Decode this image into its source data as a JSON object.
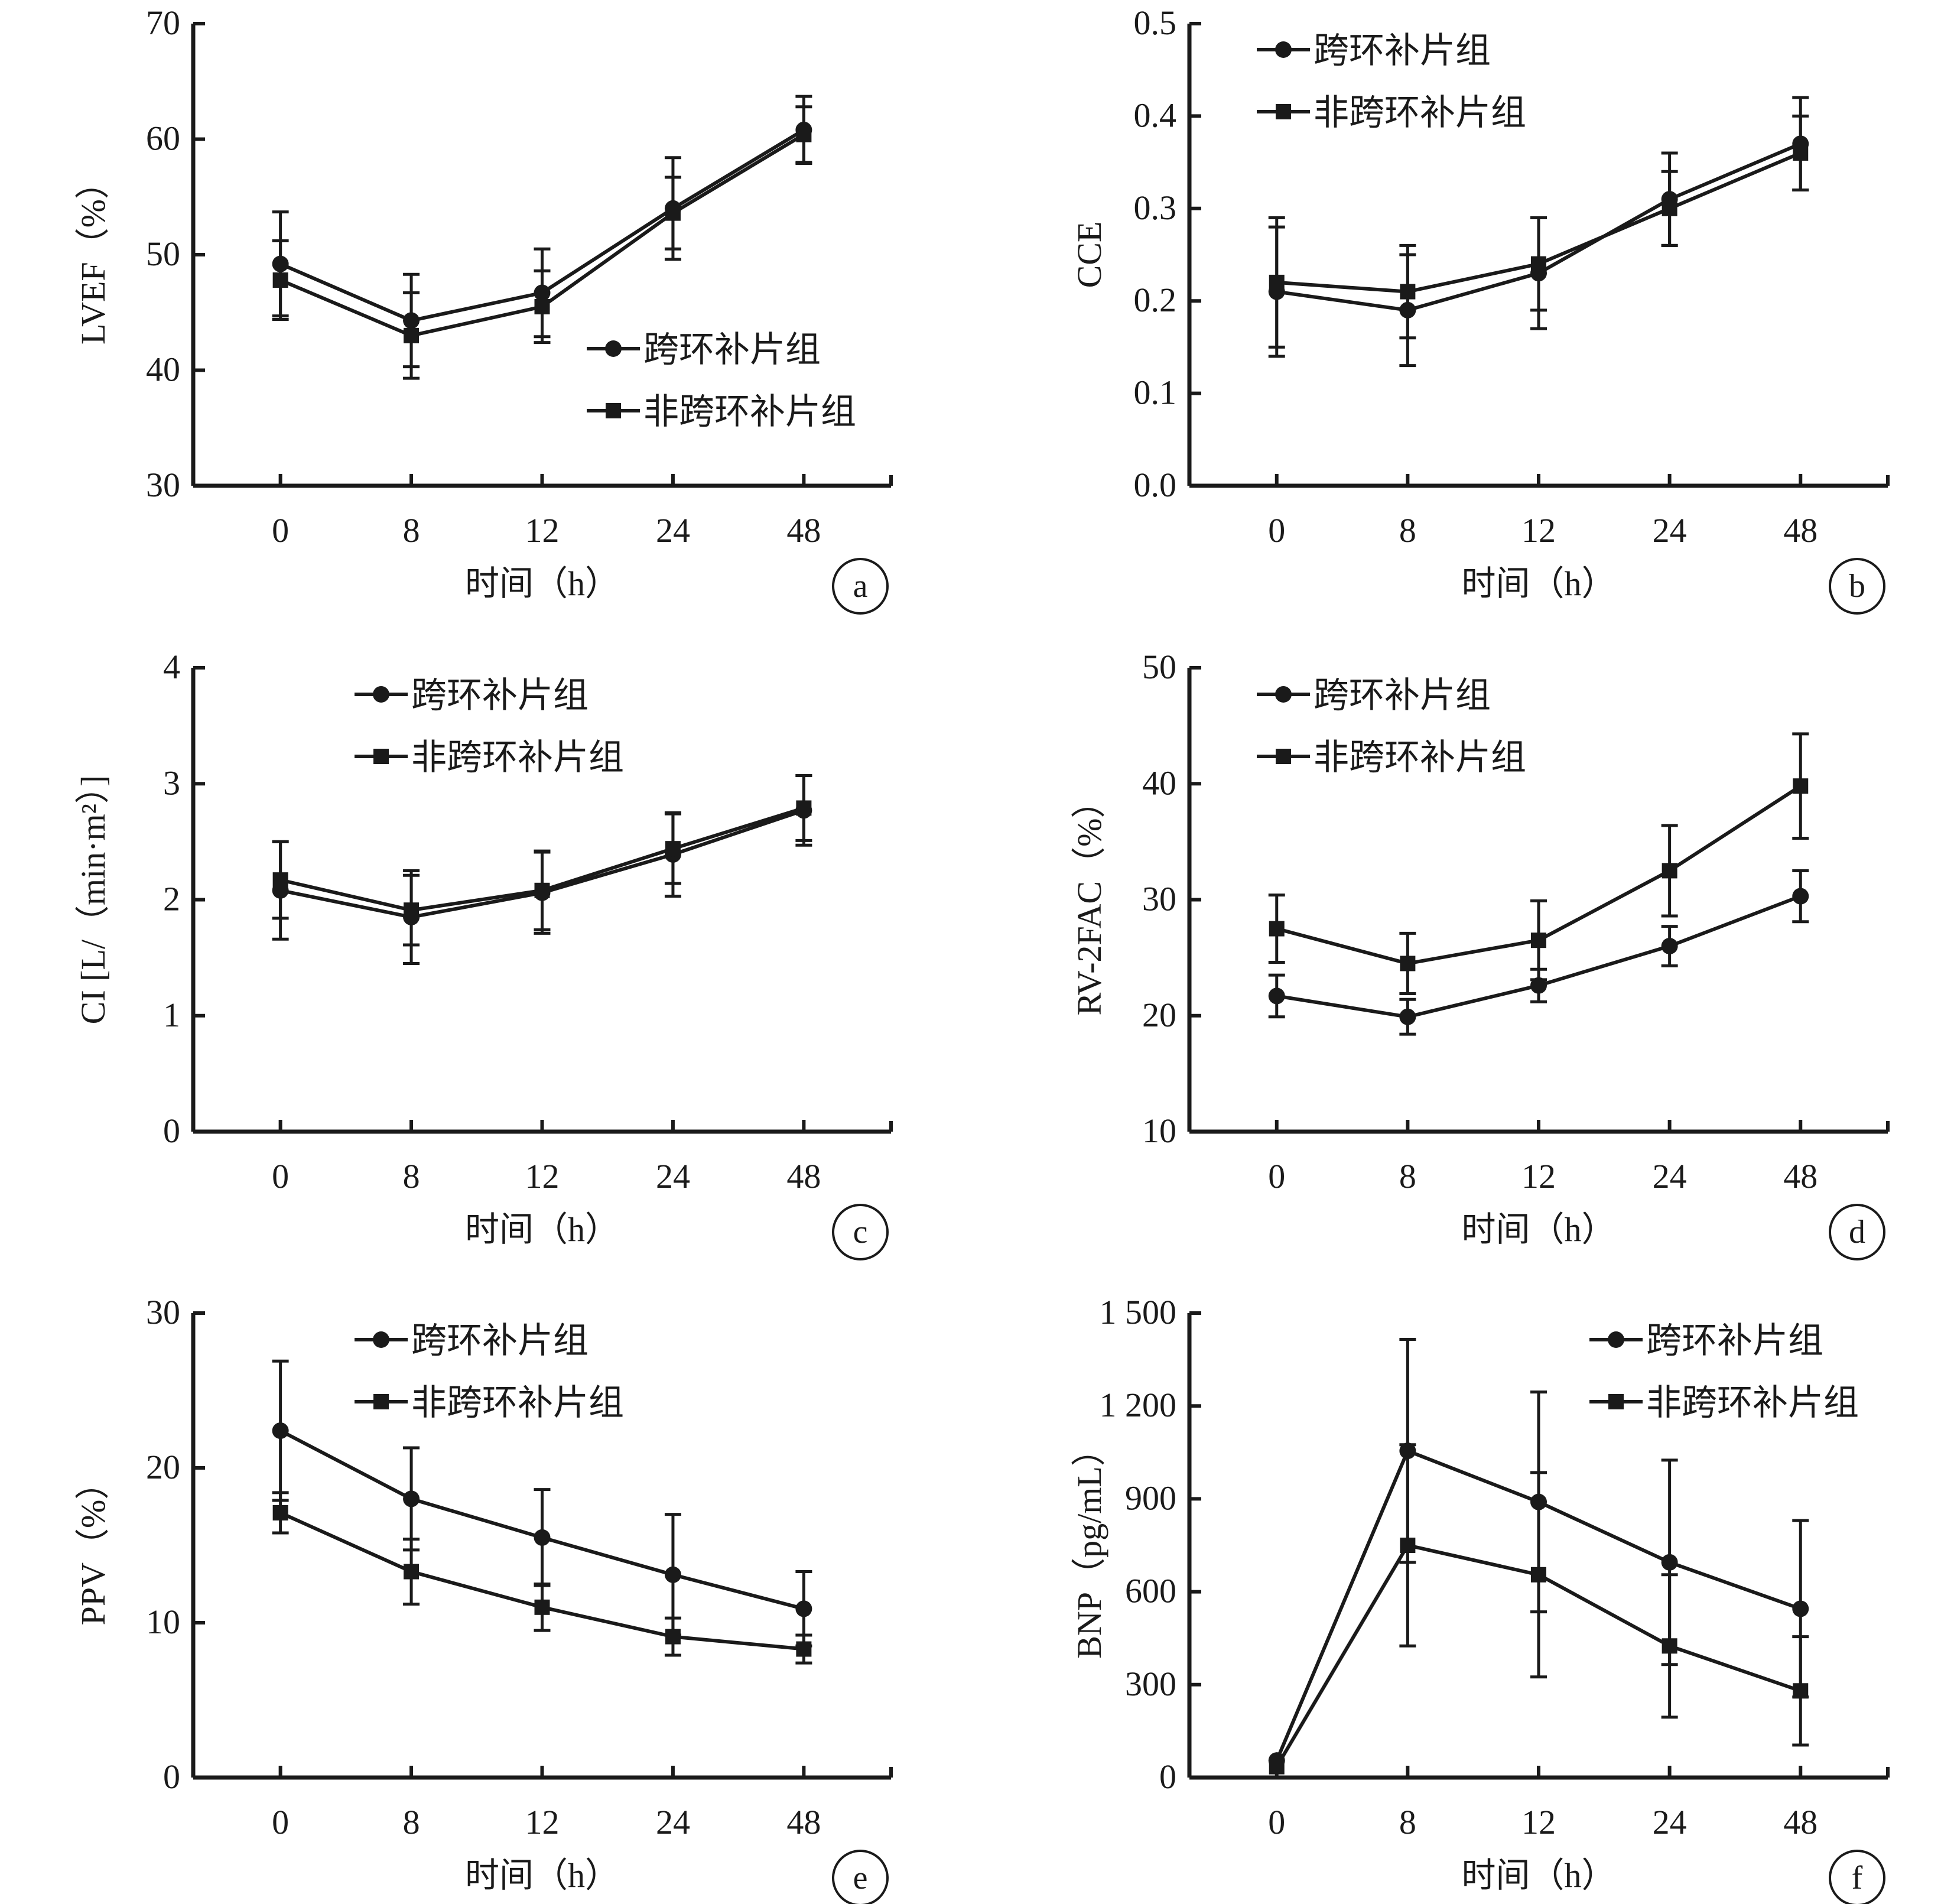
{
  "figure": {
    "legend": [
      "跨环补片组",
      "非跨环补片组"
    ],
    "xlabel": "时间（h）"
  },
  "chart_data": [
    {
      "panel": "a",
      "type": "line",
      "ylabel": "LVEF（%）",
      "xlabel": "时间（h）",
      "categories": [
        "0",
        "8",
        "12",
        "24",
        "48"
      ],
      "ylim": [
        30,
        70
      ],
      "yticks": [
        "30",
        "40",
        "50",
        "60",
        "70"
      ],
      "yticks_values": [
        30,
        40,
        50,
        60,
        70
      ],
      "legend_position": "bottom-right",
      "grid": false,
      "series": [
        {
          "name": "跨环补片组",
          "marker": "circle",
          "values": [
            49.2,
            44.3,
            46.7,
            54.0,
            60.8
          ],
          "err": [
            4.5,
            4.0,
            3.8,
            4.4,
            2.9
          ]
        },
        {
          "name": "非跨环补片组",
          "marker": "square",
          "values": [
            47.8,
            43.0,
            45.5,
            53.6,
            60.4
          ],
          "err": [
            3.4,
            3.7,
            3.1,
            3.1,
            2.4
          ]
        }
      ]
    },
    {
      "panel": "b",
      "type": "line",
      "ylabel": "CCE",
      "xlabel": "时间（h）",
      "categories": [
        "0",
        "8",
        "12",
        "24",
        "48"
      ],
      "ylim": [
        0.0,
        0.5
      ],
      "yticks": [
        "0.0",
        "0.1",
        "0.2",
        "0.3",
        "0.4",
        "0.5"
      ],
      "yticks_values": [
        0.0,
        0.1,
        0.2,
        0.3,
        0.4,
        0.5
      ],
      "legend_position": "top-left",
      "grid": false,
      "series": [
        {
          "name": "跨环补片组",
          "marker": "circle",
          "values": [
            0.21,
            0.19,
            0.23,
            0.31,
            0.37
          ],
          "err": [
            0.07,
            0.06,
            0.06,
            0.05,
            0.05
          ]
        },
        {
          "name": "非跨环补片组",
          "marker": "square",
          "values": [
            0.22,
            0.21,
            0.24,
            0.3,
            0.36
          ],
          "err": [
            0.07,
            0.05,
            0.05,
            0.04,
            0.04
          ]
        }
      ]
    },
    {
      "panel": "c",
      "type": "line",
      "ylabel": "CI [L/（min·m²）]",
      "xlabel": "时间（h）",
      "categories": [
        "0",
        "8",
        "12",
        "24",
        "48"
      ],
      "ylim": [
        0,
        4
      ],
      "yticks": [
        "0",
        "1",
        "2",
        "3",
        "4"
      ],
      "yticks_values": [
        0,
        1,
        2,
        3,
        4
      ],
      "legend_position": "top-left",
      "grid": false,
      "series": [
        {
          "name": "跨环补片组",
          "marker": "circle",
          "values": [
            2.08,
            1.85,
            2.06,
            2.39,
            2.77
          ],
          "err": [
            0.42,
            0.4,
            0.35,
            0.36,
            0.3
          ]
        },
        {
          "name": "非跨环补片组",
          "marker": "square",
          "values": [
            2.17,
            1.91,
            2.08,
            2.44,
            2.79
          ],
          "err": [
            0.33,
            0.3,
            0.34,
            0.3,
            0.28
          ]
        }
      ]
    },
    {
      "panel": "d",
      "type": "line",
      "ylabel": "RV-2FAC（%）",
      "xlabel": "时间（h）",
      "categories": [
        "0",
        "8",
        "12",
        "24",
        "48"
      ],
      "ylim": [
        10,
        50
      ],
      "yticks": [
        "10",
        "20",
        "30",
        "40",
        "50"
      ],
      "yticks_values": [
        10,
        20,
        30,
        40,
        50
      ],
      "legend_position": "top-left",
      "grid": false,
      "series": [
        {
          "name": "跨环补片组",
          "marker": "circle",
          "values": [
            21.7,
            19.9,
            22.6,
            26.0,
            30.3
          ],
          "err": [
            1.8,
            1.5,
            1.4,
            1.7,
            2.2
          ]
        },
        {
          "name": "非跨环补片组",
          "marker": "square",
          "values": [
            27.5,
            24.5,
            26.5,
            32.5,
            39.8
          ],
          "err": [
            2.9,
            2.6,
            3.4,
            3.9,
            4.5
          ]
        }
      ]
    },
    {
      "panel": "e",
      "type": "line",
      "ylabel": "PPV（%）",
      "xlabel": "时间（h）",
      "categories": [
        "0",
        "8",
        "12",
        "24",
        "48"
      ],
      "ylim": [
        0,
        30
      ],
      "yticks": [
        "0",
        "10",
        "20",
        "30"
      ],
      "yticks_values": [
        0,
        10,
        20,
        30
      ],
      "legend_position": "top-left",
      "grid": false,
      "series": [
        {
          "name": "跨环补片组",
          "marker": "circle",
          "values": [
            22.4,
            18.0,
            15.5,
            13.1,
            10.9
          ],
          "err": [
            4.5,
            3.3,
            3.1,
            3.9,
            2.4
          ]
        },
        {
          "name": "非跨环补片组",
          "marker": "square",
          "values": [
            17.1,
            13.3,
            11.0,
            9.1,
            8.3
          ],
          "err": [
            1.3,
            2.1,
            1.5,
            1.2,
            0.9
          ]
        }
      ]
    },
    {
      "panel": "f",
      "type": "line",
      "ylabel": "BNP（pg/mL）",
      "xlabel": "时间（h）",
      "categories": [
        "0",
        "8",
        "12",
        "24",
        "48"
      ],
      "ylim": [
        0,
        1500
      ],
      "yticks": [
        "0",
        "300",
        "600",
        "900",
        "1 200",
        "1 500"
      ],
      "yticks_values": [
        0,
        300,
        600,
        900,
        1200,
        1500
      ],
      "legend_position": "top-right",
      "grid": false,
      "series": [
        {
          "name": "跨环补片组",
          "marker": "circle",
          "values": [
            55,
            1055,
            890,
            695,
            545
          ],
          "err": [
            0,
            360,
            355,
            330,
            285
          ]
        },
        {
          "name": "非跨环补片组",
          "marker": "square",
          "values": [
            35,
            750,
            655,
            425,
            280
          ],
          "err": [
            0,
            325,
            330,
            230,
            175
          ]
        }
      ]
    }
  ]
}
